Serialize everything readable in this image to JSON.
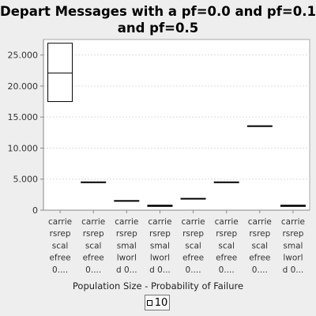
{
  "chart_data": {
    "type": "box",
    "title": [
      "Depart Messages with a pf=0.0 and pf=0.1",
      "and pf=0.5"
    ],
    "xlabel": "Population Size - Probability of Failure",
    "ylabel": "",
    "ylim": [
      0,
      27500
    ],
    "yticks": [
      0,
      5000,
      10000,
      15000,
      20000,
      25000
    ],
    "ytick_labels": [
      "0",
      "5.000",
      "10.000",
      "15.000",
      "20.000",
      "25.000"
    ],
    "grid": true,
    "legend_position": "bottom",
    "categories": [
      [
        "carrie",
        "rsrep",
        "scal",
        "efree",
        "0...."
      ],
      [
        "carrie",
        "rsrep",
        "scal",
        "efree",
        "0...."
      ],
      [
        "carrie",
        "rsrep",
        "smal",
        "lworl",
        "d 0..."
      ],
      [
        "carrie",
        "rsrep",
        "smal",
        "lworl",
        "d 0..."
      ],
      [
        "carrie",
        "rsrep",
        "scal",
        "efree",
        "0...."
      ],
      [
        "carrie",
        "rsrep",
        "scal",
        "efree",
        "0...."
      ],
      [
        "carrie",
        "rsrep",
        "scal",
        "efree",
        "0...."
      ],
      [
        "carrie",
        "rsrep",
        "smal",
        "lworl",
        "d 0..."
      ]
    ],
    "series": [
      {
        "name": "10",
        "boxes": [
          {
            "q1": 17500,
            "median": 22100,
            "q3": 26900
          },
          {
            "q1": 4450,
            "median": 4500,
            "q3": 4550
          },
          {
            "q1": 1450,
            "median": 1500,
            "q3": 1550
          },
          {
            "q1": 600,
            "median": 700,
            "q3": 800
          },
          {
            "q1": 1800,
            "median": 1850,
            "q3": 1900
          },
          {
            "q1": 4450,
            "median": 4500,
            "q3": 4550
          },
          {
            "q1": 13500,
            "median": 13550,
            "q3": 13600
          },
          {
            "q1": 600,
            "median": 700,
            "q3": 800
          }
        ]
      }
    ],
    "colors": {
      "box_fill": "#ffffff",
      "box_stroke": "#000000",
      "plot_bg": "#ffffff",
      "grid": "#dddddd"
    }
  }
}
